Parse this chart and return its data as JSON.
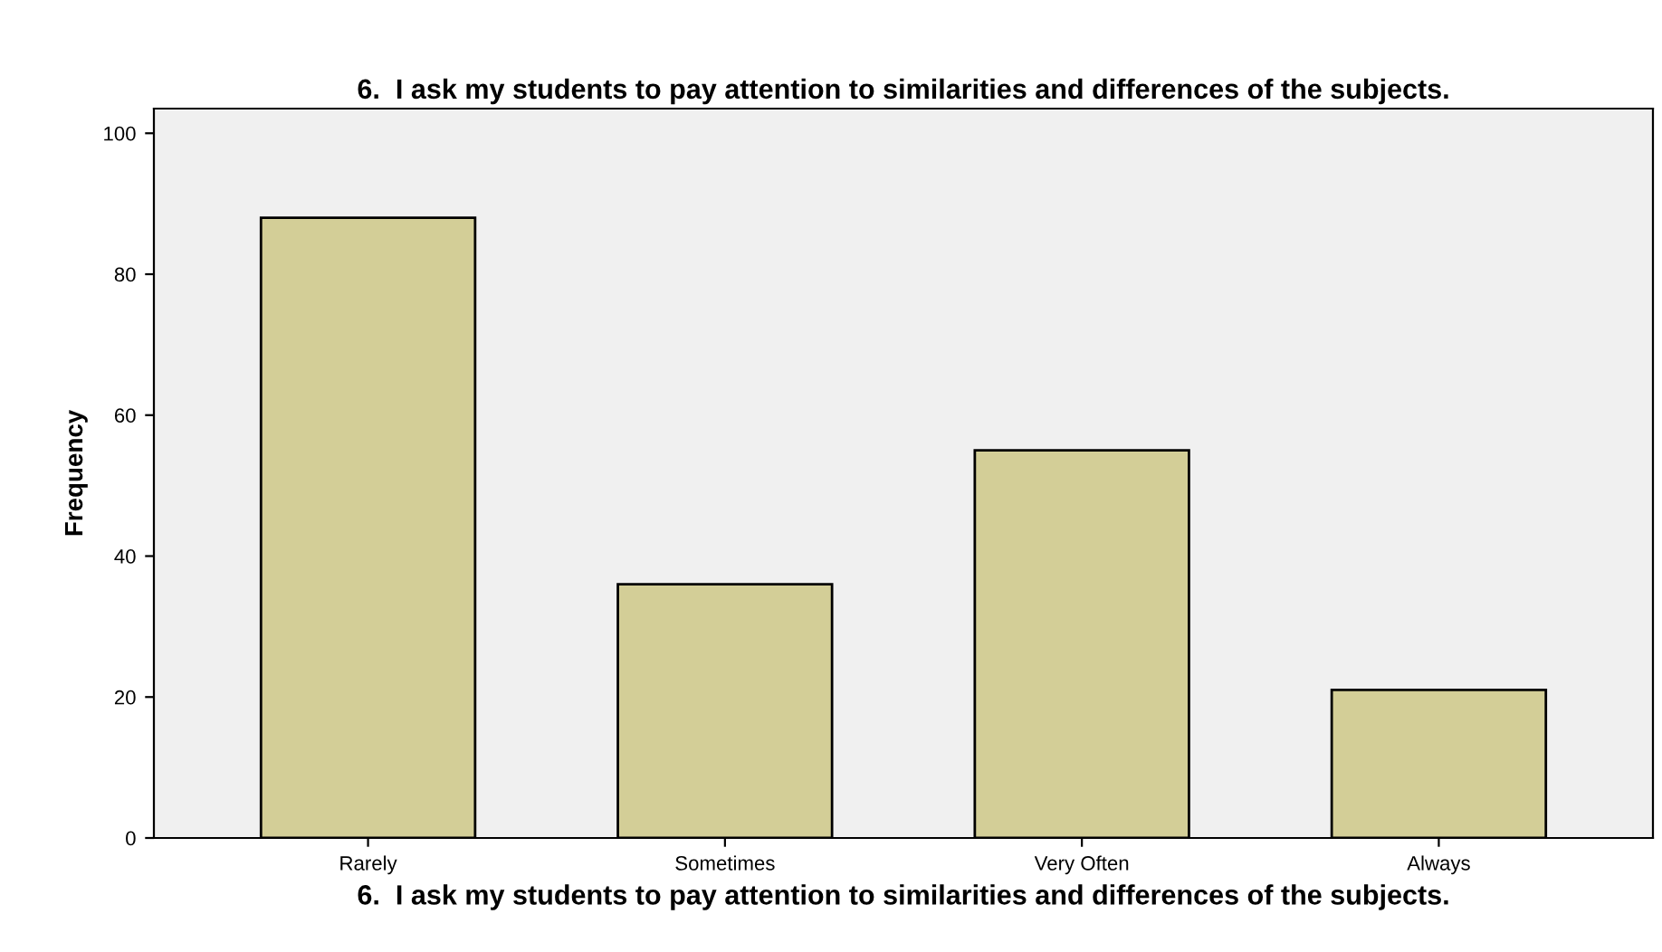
{
  "chart_data": {
    "type": "bar",
    "title": "6.  I ask my students to pay attention to similarities and differences of the subjects.",
    "xlabel": "6.  I ask my students to pay attention to similarities and differences of the subjects.",
    "ylabel": "Frequency",
    "categories": [
      "Rarely",
      "Sometimes",
      "Very Often",
      "Always"
    ],
    "values": [
      88,
      36,
      55,
      21
    ],
    "color": "#d3ce97",
    "ylim": [
      0,
      103.5
    ],
    "yticks": [
      0,
      20,
      40,
      60,
      80,
      100
    ],
    "grid": false
  }
}
